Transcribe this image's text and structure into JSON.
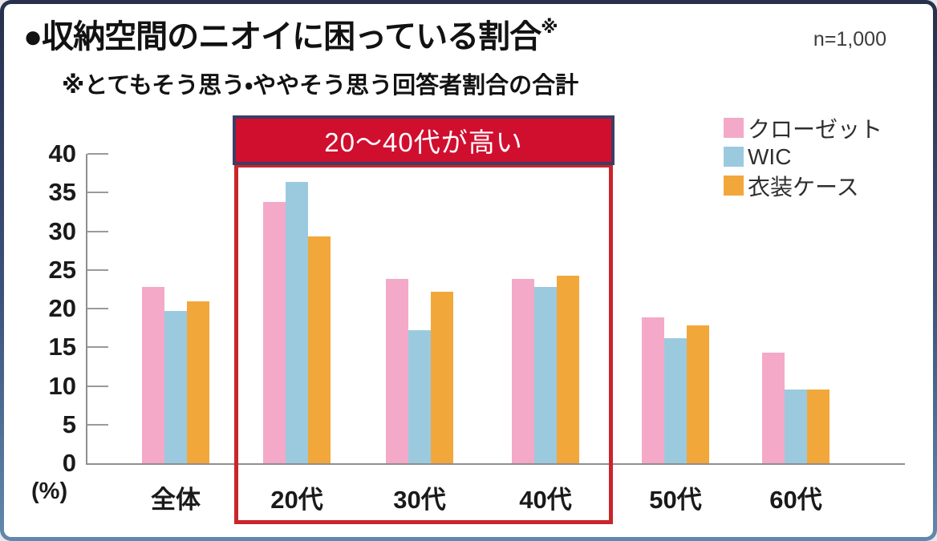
{
  "header": {
    "title": "●収納空間のニオイに困っている割合",
    "note_mark": "※",
    "sample_size": "n=1,000",
    "subtitle": "※とてもそう思う・ややそう思う回答者割合の合計"
  },
  "chart_data": {
    "type": "bar",
    "title": "収納空間のニオイに困っている割合",
    "categories": [
      "全体",
      "20代",
      "30代",
      "40代",
      "50代",
      "60代"
    ],
    "series": [
      {
        "name": "クローゼット",
        "color": "#F4A9C8",
        "values": [
          22.8,
          33.8,
          23.8,
          23.8,
          18.9,
          14.3
        ]
      },
      {
        "name": "WIC",
        "color": "#9BCADF",
        "values": [
          19.7,
          36.4,
          17.2,
          22.8,
          16.2,
          9.5
        ]
      },
      {
        "name": "衣装ケース",
        "color": "#F2A73B",
        "values": [
          20.9,
          29.3,
          22.2,
          24.3,
          17.8,
          9.5
        ]
      }
    ],
    "ylim": [
      0,
      40
    ],
    "ytick_step": 5,
    "unit": "(%)",
    "grid": false,
    "legend_position": "top-right",
    "annotation": {
      "text": "20〜40代が高い",
      "highlight_categories": [
        "20代",
        "30代",
        "40代"
      ]
    },
    "colors": {
      "banner_bg": "#D00F2F",
      "banner_border": "#3D3D63",
      "highlight_border": "#C9252B",
      "axis": "#8F8F8F"
    }
  }
}
